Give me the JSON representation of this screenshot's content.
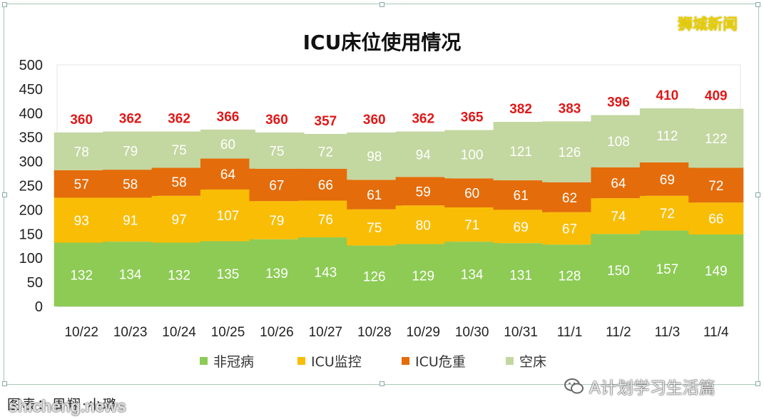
{
  "watermark_top": "狮城新闻",
  "source_caption": "图表：周翔·小璐",
  "watermark_bottom_left": "shicheng.news",
  "watermark_bottom_right": "A计划学习生活篇",
  "colors": {
    "非冠病": "#8dcb55",
    "ICU监控": "#f9bd05",
    "ICU危重": "#e46c0a",
    "空床": "#c3d7a0",
    "total_label": "#e01818",
    "segment_label": "#ffffff"
  },
  "chart_data": {
    "type": "bar",
    "stacked": true,
    "title": "ICU床位使用情况",
    "xlabel": "",
    "ylabel": "",
    "ylim": [
      0,
      500
    ],
    "yticks": [
      0,
      50,
      100,
      150,
      200,
      250,
      300,
      350,
      400,
      450,
      500
    ],
    "grid": false,
    "legend_position": "bottom",
    "categories": [
      "10/22",
      "10/23",
      "10/24",
      "10/25",
      "10/26",
      "10/27",
      "10/28",
      "10/29",
      "10/30",
      "10/31",
      "11/1",
      "11/2",
      "11/3",
      "11/4"
    ],
    "series": [
      {
        "name": "非冠病",
        "values": [
          132,
          134,
          132,
          135,
          139,
          143,
          126,
          129,
          134,
          131,
          128,
          150,
          157,
          149
        ]
      },
      {
        "name": "ICU监控",
        "values": [
          93,
          91,
          97,
          107,
          79,
          76,
          75,
          80,
          71,
          69,
          67,
          74,
          72,
          66
        ]
      },
      {
        "name": "ICU危重",
        "values": [
          57,
          58,
          58,
          64,
          67,
          66,
          61,
          59,
          60,
          61,
          62,
          64,
          69,
          72
        ]
      },
      {
        "name": "空床",
        "values": [
          78,
          79,
          75,
          60,
          75,
          72,
          98,
          94,
          100,
          121,
          126,
          108,
          112,
          122
        ]
      }
    ],
    "totals": [
      360,
      362,
      362,
      366,
      360,
      357,
      360,
      362,
      365,
      382,
      383,
      396,
      410,
      409
    ]
  }
}
